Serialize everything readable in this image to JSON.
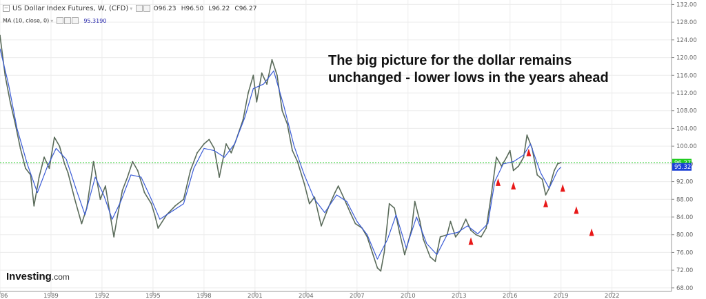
{
  "header": {
    "symbol": "US Dollar Index Futures, W, (CFD)",
    "open_key": "O",
    "open": "96.23",
    "high_key": "H",
    "high": "96.50",
    "low_key": "L",
    "low": "96.22",
    "close_key": "C",
    "close": "96.27",
    "ma_label": "MA (10, close, 0)",
    "ma_value": "95.3190"
  },
  "annotation": {
    "line1": "The big picture for the dollar remains",
    "line2": "unchanged - lower lows in the years ahead"
  },
  "logo": {
    "name": "Investing",
    "suffix": ".com"
  },
  "chart_data": {
    "type": "line",
    "title": "US Dollar Index Futures, W, (CFD)",
    "xlabel": "",
    "ylabel": "",
    "x_tick_labels": [
      "86",
      "1989",
      "1992",
      "1995",
      "1998",
      "2001",
      "2004",
      "2007",
      "2010",
      "2013",
      "2016",
      "2019",
      "2022"
    ],
    "x_tick_years": [
      1986,
      1989,
      1992,
      1995,
      1998,
      2001,
      2004,
      2007,
      2010,
      2013,
      2016,
      2019,
      2022
    ],
    "xlim": [
      1986.0,
      2025.5
    ],
    "y_tick_labels": [
      "68.00",
      "72.00",
      "76.00",
      "80.00",
      "84.00",
      "88.00",
      "92.00",
      "96.00",
      "100.00",
      "104.00",
      "108.00",
      "112.00",
      "116.00",
      "120.00",
      "124.00",
      "128.00",
      "132.00"
    ],
    "ylim": [
      67.2,
      133.0
    ],
    "grid": true,
    "current_price": {
      "label": "96.27",
      "value": 96.27,
      "color": "#22cc22"
    },
    "ma_price": {
      "label": "95.32",
      "value": 95.32,
      "color": "#1a3fd6"
    },
    "series": [
      {
        "name": "Price",
        "color": "#5a6b5a",
        "points": [
          [
            1986.0,
            125.0
          ],
          [
            1986.3,
            116.0
          ],
          [
            1986.6,
            110.0
          ],
          [
            1986.9,
            105.0
          ],
          [
            1987.2,
            99.5
          ],
          [
            1987.5,
            95.0
          ],
          [
            1987.8,
            93.5
          ],
          [
            1988.0,
            86.5
          ],
          [
            1988.3,
            93.0
          ],
          [
            1988.6,
            97.5
          ],
          [
            1988.9,
            95.0
          ],
          [
            1989.2,
            102.0
          ],
          [
            1989.5,
            100.0
          ],
          [
            1989.8,
            96.0
          ],
          [
            1990.0,
            94.0
          ],
          [
            1990.4,
            88.0
          ],
          [
            1990.8,
            82.5
          ],
          [
            1991.1,
            86.0
          ],
          [
            1991.5,
            96.5
          ],
          [
            1991.9,
            88.0
          ],
          [
            1992.2,
            91.0
          ],
          [
            1992.5,
            84.0
          ],
          [
            1992.7,
            79.5
          ],
          [
            1992.9,
            84.0
          ],
          [
            1993.2,
            90.0
          ],
          [
            1993.5,
            93.0
          ],
          [
            1993.8,
            96.5
          ],
          [
            1994.1,
            94.5
          ],
          [
            1994.5,
            89.5
          ],
          [
            1994.9,
            87.0
          ],
          [
            1995.1,
            84.5
          ],
          [
            1995.3,
            81.5
          ],
          [
            1995.8,
            84.5
          ],
          [
            1996.3,
            86.5
          ],
          [
            1996.8,
            88.0
          ],
          [
            1997.2,
            94.5
          ],
          [
            1997.6,
            98.5
          ],
          [
            1998.0,
            100.5
          ],
          [
            1998.3,
            101.5
          ],
          [
            1998.6,
            99.5
          ],
          [
            1998.9,
            93.0
          ],
          [
            1999.3,
            100.5
          ],
          [
            1999.6,
            98.5
          ],
          [
            1999.9,
            101.5
          ],
          [
            2000.3,
            106.0
          ],
          [
            2000.6,
            112.0
          ],
          [
            2000.9,
            116.0
          ],
          [
            2001.1,
            110.0
          ],
          [
            2001.4,
            116.5
          ],
          [
            2001.7,
            114.0
          ],
          [
            2002.0,
            119.5
          ],
          [
            2002.3,
            116.0
          ],
          [
            2002.6,
            108.0
          ],
          [
            2002.9,
            105.0
          ],
          [
            2003.2,
            99.0
          ],
          [
            2003.5,
            96.5
          ],
          [
            2003.9,
            91.5
          ],
          [
            2004.2,
            87.0
          ],
          [
            2004.5,
            88.5
          ],
          [
            2004.9,
            82.0
          ],
          [
            2005.3,
            86.0
          ],
          [
            2005.7,
            89.5
          ],
          [
            2005.9,
            91.0
          ],
          [
            2006.2,
            88.5
          ],
          [
            2006.6,
            85.0
          ],
          [
            2006.9,
            82.5
          ],
          [
            2007.3,
            81.5
          ],
          [
            2007.6,
            79.5
          ],
          [
            2007.9,
            76.0
          ],
          [
            2008.2,
            72.5
          ],
          [
            2008.4,
            71.8
          ],
          [
            2008.6,
            76.0
          ],
          [
            2008.9,
            87.0
          ],
          [
            2009.2,
            86.0
          ],
          [
            2009.5,
            80.5
          ],
          [
            2009.8,
            75.5
          ],
          [
            2010.2,
            81.0
          ],
          [
            2010.4,
            87.5
          ],
          [
            2010.7,
            83.0
          ],
          [
            2010.9,
            79.0
          ],
          [
            2011.3,
            75.0
          ],
          [
            2011.6,
            74.0
          ],
          [
            2011.9,
            79.5
          ],
          [
            2012.3,
            80.0
          ],
          [
            2012.5,
            83.0
          ],
          [
            2012.8,
            79.5
          ],
          [
            2013.1,
            81.0
          ],
          [
            2013.4,
            83.5
          ],
          [
            2013.7,
            81.0
          ],
          [
            2014.0,
            80.0
          ],
          [
            2014.3,
            79.5
          ],
          [
            2014.6,
            81.5
          ],
          [
            2014.9,
            89.0
          ],
          [
            2015.2,
            97.5
          ],
          [
            2015.5,
            95.5
          ],
          [
            2015.8,
            97.5
          ],
          [
            2016.0,
            99.0
          ],
          [
            2016.2,
            94.5
          ],
          [
            2016.5,
            95.5
          ],
          [
            2016.8,
            97.5
          ],
          [
            2017.0,
            102.5
          ],
          [
            2017.3,
            99.5
          ],
          [
            2017.6,
            93.5
          ],
          [
            2017.9,
            92.5
          ],
          [
            2018.1,
            89.0
          ],
          [
            2018.3,
            90.5
          ],
          [
            2018.6,
            94.5
          ],
          [
            2018.8,
            96.0
          ],
          [
            2019.0,
            96.3
          ]
        ]
      },
      {
        "name": "MA (10, close, 0)",
        "color": "#3a5bd6",
        "points": [
          [
            1986.0,
            122.0
          ],
          [
            1986.5,
            114.0
          ],
          [
            1987.0,
            104.0
          ],
          [
            1987.6,
            96.0
          ],
          [
            1988.2,
            89.5
          ],
          [
            1988.8,
            95.5
          ],
          [
            1989.3,
            99.5
          ],
          [
            1989.9,
            97.0
          ],
          [
            1990.5,
            90.0
          ],
          [
            1991.0,
            84.5
          ],
          [
            1991.6,
            93.0
          ],
          [
            1992.1,
            89.0
          ],
          [
            1992.6,
            83.5
          ],
          [
            1993.1,
            87.5
          ],
          [
            1993.7,
            93.5
          ],
          [
            1994.3,
            93.0
          ],
          [
            1994.9,
            88.0
          ],
          [
            1995.4,
            83.5
          ],
          [
            1996.0,
            85.0
          ],
          [
            1996.8,
            87.0
          ],
          [
            1997.4,
            95.0
          ],
          [
            1998.0,
            99.5
          ],
          [
            1998.6,
            99.0
          ],
          [
            1999.2,
            97.5
          ],
          [
            1999.8,
            100.5
          ],
          [
            2000.4,
            106.5
          ],
          [
            2000.9,
            113.0
          ],
          [
            2001.5,
            114.0
          ],
          [
            2002.1,
            117.0
          ],
          [
            2002.7,
            109.0
          ],
          [
            2003.3,
            100.0
          ],
          [
            2003.9,
            93.5
          ],
          [
            2004.5,
            88.0
          ],
          [
            2005.1,
            85.0
          ],
          [
            2005.8,
            89.0
          ],
          [
            2006.4,
            87.5
          ],
          [
            2007.0,
            83.0
          ],
          [
            2007.6,
            80.0
          ],
          [
            2008.2,
            74.5
          ],
          [
            2008.8,
            79.0
          ],
          [
            2009.3,
            84.5
          ],
          [
            2009.9,
            77.0
          ],
          [
            2010.5,
            84.0
          ],
          [
            2011.1,
            78.0
          ],
          [
            2011.7,
            75.5
          ],
          [
            2012.3,
            80.0
          ],
          [
            2012.9,
            80.5
          ],
          [
            2013.5,
            82.0
          ],
          [
            2014.1,
            80.2
          ],
          [
            2014.7,
            82.5
          ],
          [
            2015.1,
            92.0
          ],
          [
            2015.6,
            96.0
          ],
          [
            2016.2,
            96.5
          ],
          [
            2016.8,
            98.0
          ],
          [
            2017.2,
            100.5
          ],
          [
            2017.8,
            94.0
          ],
          [
            2018.3,
            90.5
          ],
          [
            2018.8,
            94.5
          ],
          [
            2019.0,
            95.3
          ]
        ]
      }
    ],
    "markers": [
      {
        "type": "up-triangle",
        "color": "#e81818",
        "x": 2013.7,
        "y": 78.5
      },
      {
        "type": "up-triangle",
        "color": "#e81818",
        "x": 2015.3,
        "y": 91.8
      },
      {
        "type": "up-triangle",
        "color": "#e81818",
        "x": 2016.2,
        "y": 91.0
      },
      {
        "type": "up-triangle",
        "color": "#e81818",
        "x": 2017.1,
        "y": 98.5
      },
      {
        "type": "up-triangle",
        "color": "#e81818",
        "x": 2018.1,
        "y": 87.0
      },
      {
        "type": "up-triangle",
        "color": "#e81818",
        "x": 2019.1,
        "y": 90.5
      },
      {
        "type": "up-triangle",
        "color": "#e81818",
        "x": 2019.9,
        "y": 85.5
      },
      {
        "type": "up-triangle",
        "color": "#e81818",
        "x": 2020.8,
        "y": 80.5
      }
    ]
  }
}
